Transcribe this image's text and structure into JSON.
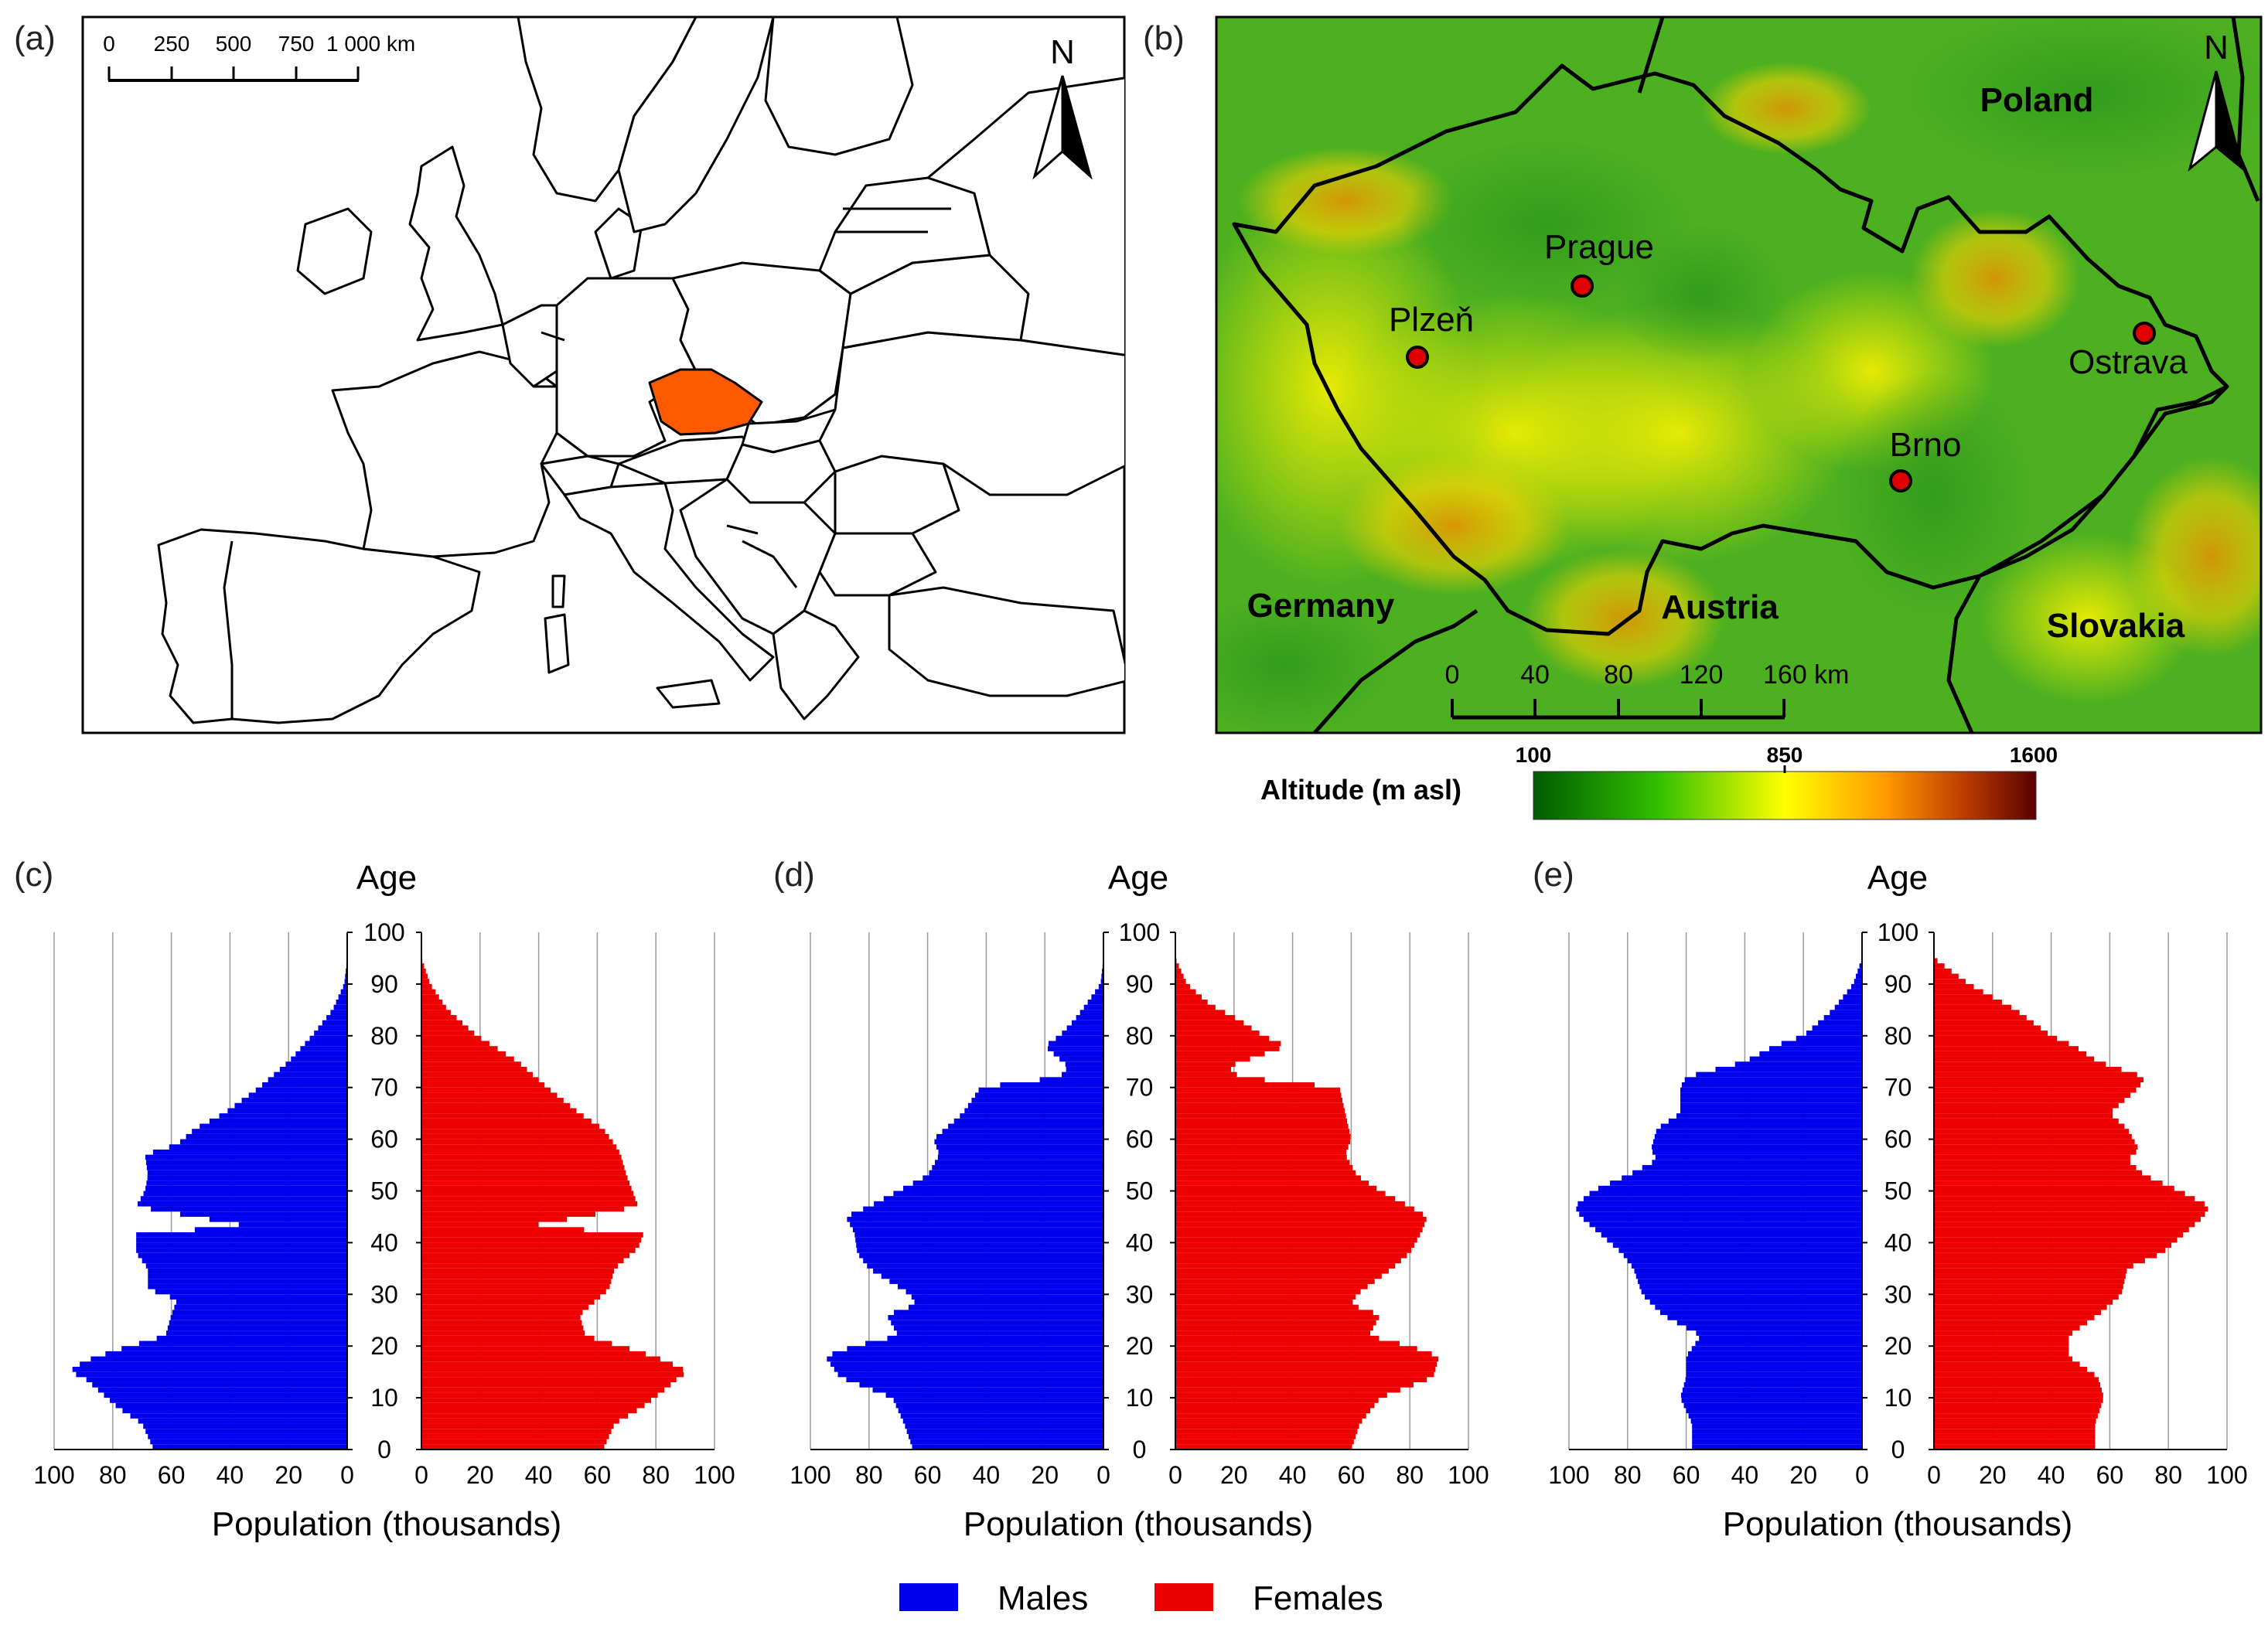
{
  "panels": {
    "a": {
      "label": "(a)",
      "scale_bar": {
        "ticks": [
          "0",
          "250",
          "500",
          "750",
          "1 000 km"
        ]
      },
      "north": "N",
      "highlight_color": "#ff5a00"
    },
    "b": {
      "label": "(b)",
      "north": "N",
      "countries": [
        "Poland",
        "Germany",
        "Austria",
        "Slovakia"
      ],
      "cities": [
        "Prague",
        "Plzeň",
        "Ostrava",
        "Brno"
      ],
      "scale_bar": {
        "ticks": [
          "0",
          "40",
          "80",
          "120",
          "160 km"
        ]
      },
      "colorbar": {
        "title": "Altitude (m asl)",
        "ticks": [
          "100",
          "850",
          "1600"
        ]
      }
    },
    "c": {
      "label": "(c)"
    },
    "d": {
      "label": "(d)"
    },
    "e": {
      "label": "(e)"
    }
  },
  "pyramid_text": {
    "age_label": "Age",
    "x_label": "Population (thousands)"
  },
  "legend": {
    "males": "Males",
    "females": "Females"
  },
  "colors": {
    "males": "#0000ee",
    "females": "#ee0000"
  },
  "chart_data": [
    {
      "type": "bar",
      "orientation": "population-pyramid",
      "panel": "(c)",
      "ylabel": "Age",
      "xlabel": "Population (thousands)",
      "age_ticks": [
        0,
        10,
        20,
        30,
        40,
        50,
        60,
        70,
        80,
        90,
        100
      ],
      "x_ticks_left": [
        100,
        80,
        60,
        40,
        20,
        0
      ],
      "x_ticks_right": [
        0,
        20,
        40,
        60,
        80,
        100
      ],
      "xlim": [
        0,
        100
      ],
      "ylim": [
        0,
        100
      ],
      "series": [
        {
          "name": "Males",
          "ages": [
            0,
            5,
            8,
            12,
            14,
            15,
            17,
            19,
            22,
            26,
            29,
            31,
            35,
            38,
            39,
            42,
            43,
            47,
            50,
            53,
            57,
            59,
            62,
            65,
            70,
            75,
            80,
            85,
            90,
            95
          ],
          "values": [
            66,
            70,
            78,
            86,
            90,
            95,
            90,
            80,
            62,
            60,
            58,
            68,
            68,
            72,
            72,
            72,
            32,
            72,
            69,
            68,
            69,
            58,
            52,
            42,
            30,
            20,
            12,
            5,
            1,
            0
          ]
        },
        {
          "name": "Females",
          "ages": [
            0,
            5,
            8,
            12,
            14,
            15,
            17,
            19,
            22,
            26,
            29,
            31,
            35,
            38,
            39,
            42,
            43,
            47,
            50,
            53,
            57,
            59,
            62,
            65,
            70,
            75,
            80,
            85,
            90,
            95
          ],
          "values": [
            62,
            66,
            75,
            84,
            88,
            91,
            84,
            74,
            56,
            54,
            60,
            64,
            66,
            72,
            74,
            76,
            35,
            74,
            72,
            70,
            68,
            66,
            62,
            54,
            43,
            33,
            19,
            9,
            3,
            0
          ]
        }
      ]
    },
    {
      "type": "bar",
      "orientation": "population-pyramid",
      "panel": "(d)",
      "ylabel": "Age",
      "xlabel": "Population (thousands)",
      "age_ticks": [
        0,
        10,
        20,
        30,
        40,
        50,
        60,
        70,
        80,
        90,
        100
      ],
      "x_ticks_left": [
        100,
        80,
        60,
        40,
        20,
        0
      ],
      "x_ticks_right": [
        0,
        20,
        40,
        60,
        80,
        100
      ],
      "xlim": [
        0,
        100
      ],
      "ylim": [
        0,
        100
      ],
      "series": [
        {
          "name": "Males",
          "ages": [
            0,
            5,
            10,
            14,
            18,
            20,
            22,
            26,
            28,
            30,
            35,
            38,
            42,
            45,
            47,
            50,
            53,
            57,
            60,
            65,
            70,
            72,
            74,
            78,
            80,
            83,
            86,
            90,
            95
          ],
          "values": [
            65,
            68,
            72,
            90,
            95,
            85,
            70,
            74,
            64,
            66,
            80,
            84,
            85,
            88,
            80,
            70,
            60,
            56,
            58,
            48,
            42,
            15,
            12,
            20,
            15,
            10,
            6,
            1,
            0
          ]
        },
        {
          "name": "Females",
          "ages": [
            0,
            5,
            10,
            14,
            18,
            20,
            22,
            26,
            28,
            30,
            35,
            38,
            42,
            45,
            47,
            50,
            53,
            57,
            60,
            65,
            70,
            72,
            74,
            78,
            80,
            83,
            86,
            90,
            95
          ],
          "values": [
            60,
            63,
            70,
            88,
            90,
            80,
            66,
            70,
            60,
            62,
            74,
            80,
            84,
            86,
            80,
            70,
            62,
            58,
            60,
            58,
            56,
            22,
            18,
            38,
            30,
            22,
            12,
            4,
            0
          ]
        }
      ]
    },
    {
      "type": "bar",
      "orientation": "population-pyramid",
      "panel": "(e)",
      "ylabel": "Age",
      "xlabel": "Population (thousands)",
      "age_ticks": [
        0,
        10,
        20,
        30,
        40,
        50,
        60,
        70,
        80,
        90,
        100
      ],
      "x_ticks_left": [
        100,
        80,
        60,
        40,
        20,
        0
      ],
      "x_ticks_right": [
        0,
        20,
        40,
        60,
        80,
        100
      ],
      "xlim": [
        0,
        100
      ],
      "ylim": [
        0,
        100
      ],
      "series": [
        {
          "name": "Males",
          "ages": [
            0,
            5,
            10,
            14,
            18,
            22,
            26,
            30,
            35,
            38,
            42,
            45,
            47,
            50,
            53,
            56,
            58,
            62,
            65,
            70,
            72,
            75,
            78,
            80,
            85,
            90,
            95
          ],
          "values": [
            58,
            58,
            62,
            60,
            60,
            55,
            68,
            75,
            78,
            82,
            90,
            96,
            98,
            92,
            80,
            70,
            72,
            70,
            62,
            62,
            60,
            40,
            30,
            20,
            10,
            3,
            0
          ]
        },
        {
          "name": "Females",
          "ages": [
            0,
            5,
            10,
            14,
            18,
            22,
            26,
            30,
            35,
            38,
            42,
            45,
            47,
            50,
            53,
            56,
            58,
            62,
            65,
            70,
            72,
            75,
            78,
            80,
            85,
            90,
            95
          ],
          "values": [
            55,
            55,
            58,
            56,
            46,
            46,
            56,
            64,
            66,
            78,
            86,
            92,
            94,
            84,
            72,
            66,
            70,
            66,
            60,
            70,
            72,
            56,
            48,
            40,
            28,
            12,
            0
          ]
        }
      ]
    }
  ]
}
